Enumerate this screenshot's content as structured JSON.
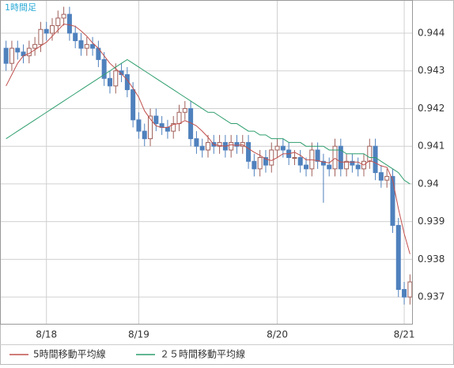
{
  "chart_data": {
    "type": "candlestick",
    "title": "1時間足",
    "categories": [
      null,
      null,
      null,
      null,
      null,
      null,
      null,
      "8/18",
      null,
      null,
      null,
      null,
      null,
      null,
      null,
      null,
      null,
      null,
      null,
      null,
      null,
      null,
      null,
      "8/19",
      null,
      null,
      null,
      null,
      null,
      null,
      null,
      null,
      null,
      null,
      null,
      null,
      null,
      null,
      null,
      null,
      null,
      null,
      null,
      null,
      null,
      null,
      null,
      "8/20",
      null,
      null,
      null,
      null,
      null,
      null,
      null,
      null,
      null,
      null,
      null,
      null,
      null,
      null,
      null,
      null,
      null,
      null,
      null,
      null,
      null,
      "8/21",
      null
    ],
    "open": [
      0.9436,
      0.9432,
      0.9436,
      0.9435,
      0.9434,
      0.9436,
      0.9437,
      0.9441,
      0.944,
      0.9442,
      0.9444,
      0.9445,
      0.944,
      0.9438,
      0.9436,
      0.9437,
      0.9436,
      0.9433,
      0.9428,
      0.9426,
      0.943,
      0.9429,
      0.9425,
      0.9417,
      0.9414,
      0.9412,
      0.9418,
      0.9416,
      0.9415,
      0.9414,
      0.9416,
      0.9419,
      0.942,
      0.9412,
      0.941,
      0.9409,
      0.9411,
      0.941,
      0.9411,
      0.9409,
      0.9411,
      0.941,
      0.9411,
      0.9406,
      0.9404,
      0.9407,
      0.9405,
      0.9409,
      0.941,
      0.9409,
      0.9407,
      0.9407,
      0.9405,
      0.9404,
      0.9409,
      0.9406,
      0.9405,
      0.9404,
      0.941,
      0.9404,
      0.9406,
      0.9405,
      0.9404,
      0.9406,
      0.941,
      0.9403,
      0.9401,
      0.9402,
      0.9389,
      0.9372,
      0.937
    ],
    "high": [
      0.9438,
      0.9438,
      0.9438,
      0.9437,
      0.9438,
      0.9439,
      0.9443,
      0.9443,
      0.9444,
      0.9446,
      0.9447,
      0.9447,
      0.9442,
      0.944,
      0.9439,
      0.9439,
      0.9438,
      0.9435,
      0.943,
      0.9432,
      0.9432,
      0.9431,
      0.9427,
      0.9419,
      0.9416,
      0.942,
      0.942,
      0.9418,
      0.9417,
      0.9418,
      0.9421,
      0.9422,
      0.9422,
      0.9414,
      0.9412,
      0.9413,
      0.9413,
      0.9413,
      0.9413,
      0.9413,
      0.9413,
      0.9413,
      0.9413,
      0.9408,
      0.9409,
      0.9409,
      0.9411,
      0.9412,
      0.9412,
      0.9411,
      0.9409,
      0.9409,
      0.9407,
      0.9411,
      0.9411,
      0.9408,
      0.9407,
      0.9412,
      0.9412,
      0.9408,
      0.9408,
      0.9407,
      0.9408,
      0.9412,
      0.9412,
      0.9405,
      0.9404,
      0.9404,
      0.9391,
      0.9374,
      0.9376
    ],
    "low": [
      0.943,
      0.943,
      0.9433,
      0.9432,
      0.9432,
      0.9434,
      0.9435,
      0.9438,
      0.9438,
      0.944,
      0.9442,
      0.9438,
      0.9436,
      0.9434,
      0.9434,
      0.9434,
      0.9431,
      0.9426,
      0.9424,
      0.9424,
      0.9427,
      0.9423,
      0.9415,
      0.9412,
      0.941,
      0.941,
      0.9414,
      0.9413,
      0.9412,
      0.9412,
      0.9414,
      0.9417,
      0.941,
      0.9408,
      0.9407,
      0.9407,
      0.9408,
      0.9408,
      0.9407,
      0.9407,
      0.9408,
      0.9408,
      0.9404,
      0.9402,
      0.9402,
      0.9403,
      0.9403,
      0.9407,
      0.9407,
      0.9405,
      0.9405,
      0.9403,
      0.9402,
      0.9402,
      0.9404,
      0.9395,
      0.9402,
      0.9402,
      0.9402,
      0.9402,
      0.9403,
      0.9402,
      0.9402,
      0.9404,
      0.9401,
      0.9399,
      0.9399,
      0.9387,
      0.937,
      0.9368,
      0.9368
    ],
    "close": [
      0.9432,
      0.9436,
      0.9435,
      0.9434,
      0.9436,
      0.9437,
      0.9441,
      0.944,
      0.9442,
      0.9444,
      0.9445,
      0.944,
      0.9438,
      0.9436,
      0.9437,
      0.9436,
      0.9433,
      0.9428,
      0.9426,
      0.943,
      0.9429,
      0.9425,
      0.9417,
      0.9414,
      0.9412,
      0.9418,
      0.9416,
      0.9415,
      0.9414,
      0.9416,
      0.9419,
      0.942,
      0.9412,
      0.941,
      0.9409,
      0.9411,
      0.941,
      0.9411,
      0.9409,
      0.9411,
      0.941,
      0.9411,
      0.9406,
      0.9404,
      0.9407,
      0.9405,
      0.9409,
      0.941,
      0.9409,
      0.9407,
      0.9407,
      0.9405,
      0.9404,
      0.9409,
      0.9406,
      0.9405,
      0.9404,
      0.941,
      0.9404,
      0.9406,
      0.9405,
      0.9404,
      0.9406,
      0.941,
      0.9403,
      0.9401,
      0.9402,
      0.9389,
      0.9372,
      0.937,
      0.9374
    ],
    "up_color": "#ffffff",
    "up_stroke": "#a0605a",
    "down_color": "#4f81bd",
    "series": [
      {
        "name": "5時間移動平均線",
        "color": "#c0504d",
        "values": [
          0.9426,
          0.9429,
          0.9432,
          0.9434,
          0.94346,
          0.94356,
          0.94366,
          0.94376,
          0.94392,
          0.94408,
          0.94424,
          0.94422,
          0.94418,
          0.94406,
          0.94392,
          0.94374,
          0.9436,
          0.9434,
          0.9432,
          0.94306,
          0.94292,
          0.94276,
          0.94254,
          0.9423,
          0.94194,
          0.94172,
          0.94154,
          0.9415,
          0.9415,
          0.94158,
          0.9416,
          0.94168,
          0.94162,
          0.94154,
          0.9414,
          0.94124,
          0.94104,
          0.94102,
          0.941,
          0.94104,
          0.94102,
          0.94104,
          0.94094,
          0.94084,
          0.94076,
          0.94066,
          0.94062,
          0.9407,
          0.9408,
          0.9408,
          0.94084,
          0.94076,
          0.94064,
          0.94064,
          0.94062,
          0.94058,
          0.94056,
          0.94068,
          0.94058,
          0.94058,
          0.94058,
          0.94058,
          0.9405,
          0.94062,
          0.94056,
          0.94048,
          0.94044,
          0.9401,
          0.93934,
          0.93868,
          0.93814
        ]
      },
      {
        "name": "２５時間移動平均線",
        "color": "#2e9e6e",
        "values": [
          0.9412,
          0.9413,
          0.9414,
          0.9415,
          0.9416,
          0.9417,
          0.9418,
          0.9419,
          0.942,
          0.9421,
          0.9422,
          0.9423,
          0.9424,
          0.9425,
          0.9426,
          0.9427,
          0.9428,
          0.9429,
          0.943,
          0.9431,
          0.9432,
          0.9433,
          0.9432,
          0.9431,
          0.943,
          0.9429,
          0.9428,
          0.9427,
          0.9426,
          0.9425,
          0.9424,
          0.9423,
          0.9422,
          0.9421,
          0.942,
          0.9419,
          0.9419,
          0.9418,
          0.9417,
          0.9416,
          0.9416,
          0.9415,
          0.9414,
          0.9414,
          0.9413,
          0.9413,
          0.9412,
          0.9412,
          0.9412,
          0.9411,
          0.9411,
          0.9411,
          0.941,
          0.941,
          0.941,
          0.941,
          0.9409,
          0.9409,
          0.9409,
          0.9408,
          0.9408,
          0.9408,
          0.9408,
          0.9407,
          0.9407,
          0.9406,
          0.9405,
          0.9404,
          0.9403,
          0.9401,
          0.94
        ]
      }
    ],
    "ylim": [
      0.93629,
      0.94488
    ],
    "yticks": [
      0.937,
      0.938,
      0.939,
      0.94,
      0.941,
      0.942,
      0.943,
      0.944
    ],
    "grid": true,
    "legend": "bottom"
  }
}
